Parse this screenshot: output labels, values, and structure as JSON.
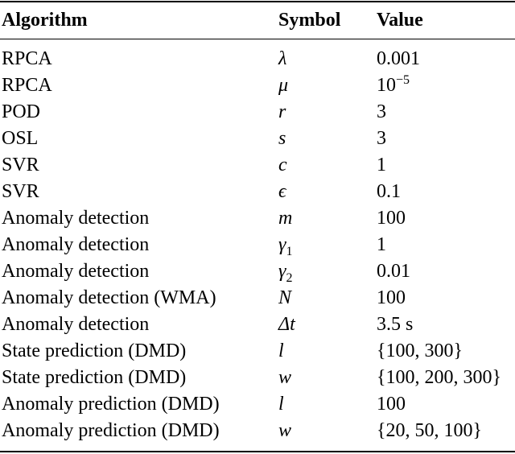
{
  "table": {
    "header": [
      "Algorithm",
      "Symbol",
      "Value"
    ],
    "rows": [
      [
        "RPCA",
        "λ",
        "0.001"
      ],
      [
        "RPCA",
        "μ",
        {
          "base": "10",
          "sup": "−5"
        }
      ],
      [
        "POD",
        "r",
        "3"
      ],
      [
        "OSL",
        "s",
        "3"
      ],
      [
        "SVR",
        "c",
        "1"
      ],
      [
        "SVR",
        "ϵ",
        "0.1"
      ],
      [
        "Anomaly detection",
        "m",
        "100"
      ],
      [
        "Anomaly detection",
        {
          "base": "γ",
          "sub": "1"
        },
        "1"
      ],
      [
        "Anomaly detection",
        {
          "base": "γ",
          "sub": "2"
        },
        "0.01"
      ],
      [
        "Anomaly detection (WMA)",
        "N",
        "100"
      ],
      [
        "Anomaly detection",
        "Δt",
        "3.5 s"
      ],
      [
        "State prediction (DMD)",
        "l",
        "{100, 300}"
      ],
      [
        "State prediction (DMD)",
        "w",
        "{100, 200, 300}"
      ],
      [
        "Anomaly prediction (DMD)",
        "l",
        "100"
      ],
      [
        "Anomaly prediction (DMD)",
        "w",
        "{20, 50, 100}"
      ]
    ]
  }
}
